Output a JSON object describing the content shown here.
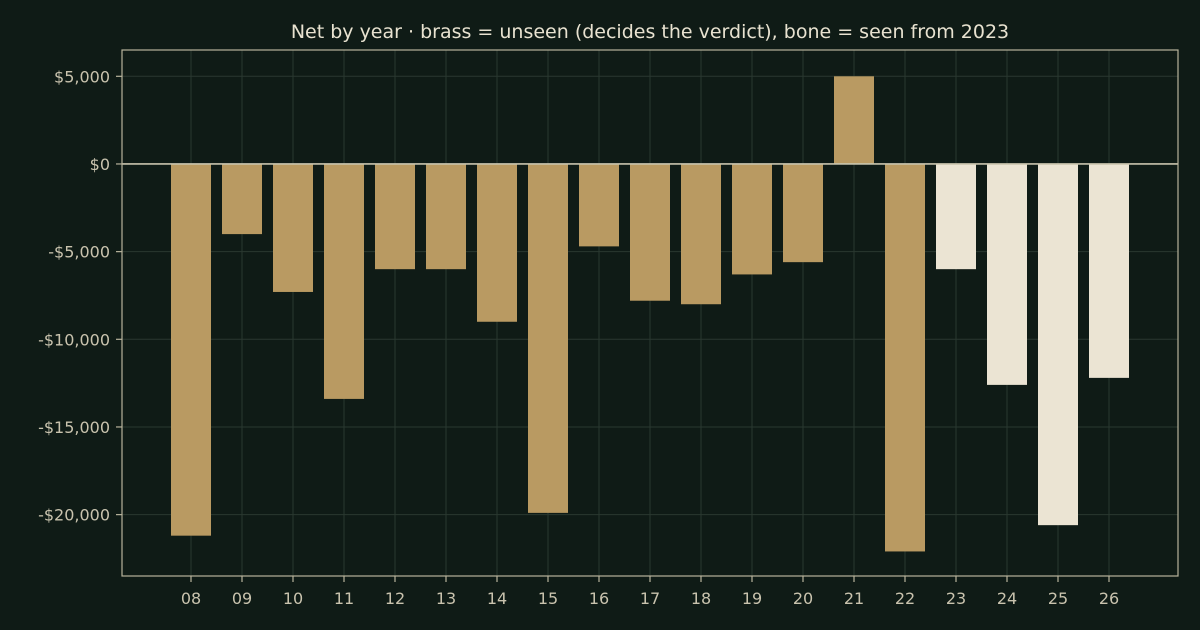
{
  "chart_data": {
    "type": "bar",
    "title": "Net by year  ·  brass = unseen (decides the verdict), bone = seen from 2023",
    "xlabel": "",
    "ylabel": "",
    "categories": [
      "08",
      "09",
      "10",
      "11",
      "12",
      "13",
      "14",
      "15",
      "16",
      "17",
      "18",
      "19",
      "20",
      "21",
      "22",
      "23",
      "24",
      "25",
      "26"
    ],
    "values": [
      -21200,
      -4000,
      -7300,
      -13400,
      -6000,
      -6000,
      -9000,
      -19900,
      -4700,
      -7800,
      -8000,
      -6300,
      -5600,
      5000,
      -22100,
      -6000,
      -12600,
      -20600,
      -12200
    ],
    "groups": [
      "unseen",
      "unseen",
      "unseen",
      "unseen",
      "unseen",
      "unseen",
      "unseen",
      "unseen",
      "unseen",
      "unseen",
      "unseen",
      "unseen",
      "unseen",
      "unseen",
      "unseen",
      "seen",
      "seen",
      "seen",
      "seen"
    ],
    "group_colors": {
      "unseen": "#b99a62",
      "seen": "#ebe4d3"
    },
    "ylim": [
      -23500,
      6500
    ],
    "yticks": [
      5000,
      0,
      -5000,
      -10000,
      -15000,
      -20000
    ],
    "ytick_labels": [
      "$5,000",
      "$0",
      "-$5,000",
      "-$10,000",
      "-$15,000",
      "-$20,000"
    ],
    "grid": true,
    "legend": "none"
  }
}
